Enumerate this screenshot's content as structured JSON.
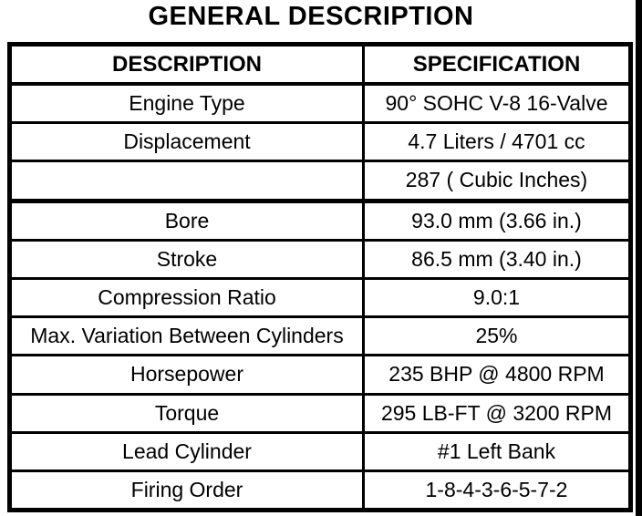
{
  "page": {
    "title": "GENERAL DESCRIPTION"
  },
  "table": {
    "headers": {
      "description": "DESCRIPTION",
      "specification": "SPECIFICATION"
    },
    "rows": [
      {
        "description": "Engine Type",
        "specification": "90° SOHC V-8 16-Valve"
      },
      {
        "description": "Displacement",
        "specification": "4.7 Liters / 4701 cc"
      },
      {
        "description": "",
        "specification": "287 ( Cubic Inches)"
      },
      {
        "description": "Bore",
        "specification": "93.0 mm (3.66 in.)"
      },
      {
        "description": "Stroke",
        "specification": "86.5 mm (3.40 in.)"
      },
      {
        "description": "Compression Ratio",
        "specification": "9.0:1"
      },
      {
        "description": "Max. Variation Between Cylinders",
        "specification": "25%"
      },
      {
        "description": "Horsepower",
        "specification": "235 BHP @ 4800 RPM"
      },
      {
        "description": "Torque",
        "specification": "295 LB-FT @ 3200 RPM"
      },
      {
        "description": "Lead Cylinder",
        "specification": "#1 Left Bank"
      },
      {
        "description": "Firing Order",
        "specification": "1-8-4-3-6-5-7-2"
      }
    ]
  },
  "colors": {
    "ink": "#000000",
    "paper": "#ffffff"
  }
}
